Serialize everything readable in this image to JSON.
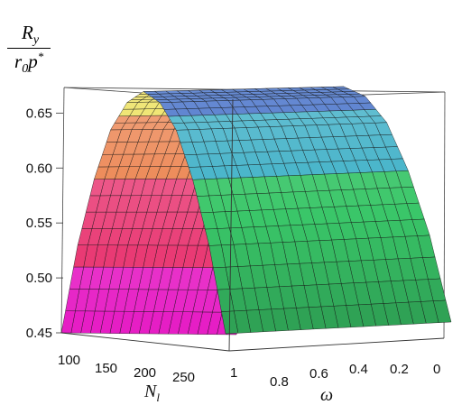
{
  "chart_data": {
    "type": "surface3d",
    "title": "",
    "zlabel": {
      "numerator": "R",
      "numerator_sub": "y",
      "denominator": "r",
      "denominator_sub": "0",
      "denominator_var": "p",
      "denominator_sup": "*"
    },
    "xlabel": "N",
    "xlabel_sub": "l",
    "ylabel": "ω",
    "x_ticks": [
      "100",
      "150",
      "200",
      "250"
    ],
    "y_ticks": [
      "1",
      "0.8",
      "0.6",
      "0.4",
      "0.2",
      "0"
    ],
    "z_ticks": [
      "0.45",
      "0.50",
      "0.55",
      "0.60",
      "0.65"
    ],
    "xlim": [
      100,
      300
    ],
    "ylim": [
      0,
      1
    ],
    "zlim": [
      0.45,
      0.67
    ],
    "grid": false,
    "surface": {
      "description_of_shape": "ridge peaking near ω = 0.5, nearly constant along N_l",
      "omega": [
        1.0,
        0.9,
        0.8,
        0.7,
        0.6,
        0.5,
        0.4,
        0.3,
        0.2,
        0.1,
        0.0
      ],
      "N_l": [
        100,
        300
      ],
      "Ry_over_r0p": [
        0.45,
        0.53,
        0.59,
        0.635,
        0.66,
        0.67,
        0.66,
        0.635,
        0.59,
        0.53,
        0.45
      ]
    },
    "colormap": "rainbow (magenta / pink / orange / yellow on the ω = 1 side, green / cyan / blue on the ω = 0 side)"
  }
}
